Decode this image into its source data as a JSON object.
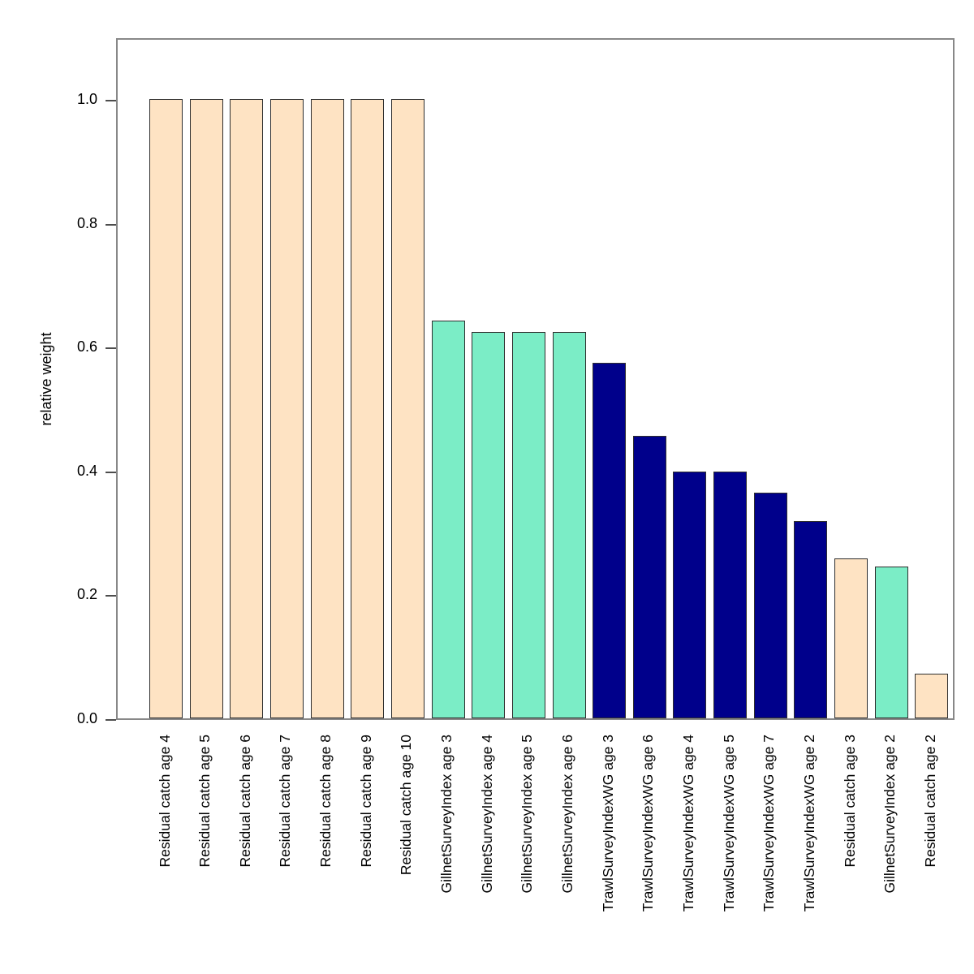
{
  "figure": {
    "background_color": "#ffffff",
    "axis_box_color": "#888888",
    "tick_color": "#4d4d4d",
    "bar_border_color": "#2e2e2e"
  },
  "chart_data": {
    "type": "bar",
    "title": "",
    "xlabel": "",
    "ylabel": "relative weight",
    "ylim": [
      0,
      1.1
    ],
    "grid": false,
    "legend_position": "none",
    "yticks": [
      "0.0",
      "0.2",
      "0.4",
      "0.6",
      "0.8",
      "1.0"
    ],
    "series_colors": {
      "Residual catch": "#FEE3C3",
      "GillnetSurveyIndex": "#7BEDC6",
      "TrawlSurveyIndexWG": "#00008B"
    },
    "bars": [
      {
        "label": "Residual catch age 4",
        "series": "Residual catch",
        "value": 1.0
      },
      {
        "label": "Residual catch age 5",
        "series": "Residual catch",
        "value": 1.0
      },
      {
        "label": "Residual catch age 6",
        "series": "Residual catch",
        "value": 1.0
      },
      {
        "label": "Residual catch age 7",
        "series": "Residual catch",
        "value": 1.0
      },
      {
        "label": "Residual catch age 8",
        "series": "Residual catch",
        "value": 1.0
      },
      {
        "label": "Residual catch age 9",
        "series": "Residual catch",
        "value": 1.0
      },
      {
        "label": "Residual catch age 10",
        "series": "Residual catch",
        "value": 1.0
      },
      {
        "label": "GillnetSurveyIndex age 3",
        "series": "GillnetSurveyIndex",
        "value": 0.642
      },
      {
        "label": "GillnetSurveyIndex age 4",
        "series": "GillnetSurveyIndex",
        "value": 0.624
      },
      {
        "label": "GillnetSurveyIndex age 5",
        "series": "GillnetSurveyIndex",
        "value": 0.624
      },
      {
        "label": "GillnetSurveyIndex age 6",
        "series": "GillnetSurveyIndex",
        "value": 0.624
      },
      {
        "label": "TrawlSurveyIndexWG age 3",
        "series": "TrawlSurveyIndexWG",
        "value": 0.574
      },
      {
        "label": "TrawlSurveyIndexWG age 6",
        "series": "TrawlSurveyIndexWG",
        "value": 0.456
      },
      {
        "label": "TrawlSurveyIndexWG age 4",
        "series": "TrawlSurveyIndexWG",
        "value": 0.398
      },
      {
        "label": "TrawlSurveyIndexWG age 5",
        "series": "TrawlSurveyIndexWG",
        "value": 0.398
      },
      {
        "label": "TrawlSurveyIndexWG age 7",
        "series": "TrawlSurveyIndexWG",
        "value": 0.364
      },
      {
        "label": "TrawlSurveyIndexWG age 2",
        "series": "TrawlSurveyIndexWG",
        "value": 0.318
      },
      {
        "label": "Residual catch age 3",
        "series": "Residual catch",
        "value": 0.258
      },
      {
        "label": "GillnetSurveyIndex age 2",
        "series": "GillnetSurveyIndex",
        "value": 0.245
      },
      {
        "label": "Residual catch age 2",
        "series": "Residual catch",
        "value": 0.072
      }
    ]
  }
}
